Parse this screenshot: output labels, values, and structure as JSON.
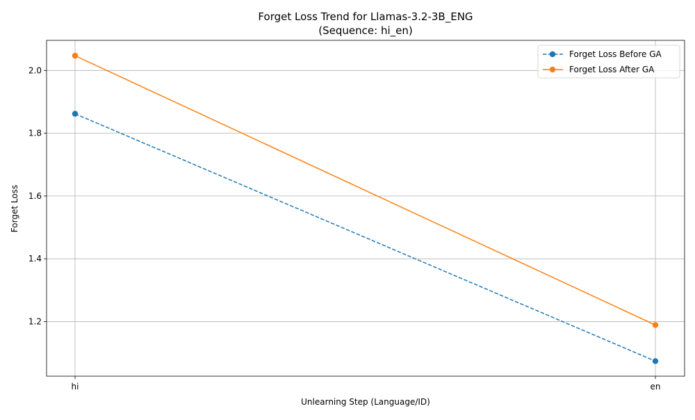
{
  "chart_data": {
    "type": "line",
    "title": "Forget Loss Trend for Llamas-3.2-3B_ENG",
    "subtitle": "(Sequence: hi_en)",
    "xlabel": "Unlearning Step (Language/ID)",
    "ylabel": "Forget Loss",
    "categories": [
      "hi",
      "en"
    ],
    "ylim": [
      1.026,
      2.096
    ],
    "yticks": [
      1.2,
      1.4,
      1.6,
      1.8,
      2.0
    ],
    "ytick_labels": [
      "1.2",
      "1.4",
      "1.6",
      "1.8",
      "2.0"
    ],
    "grid": true,
    "legend_position": "top-right",
    "series": [
      {
        "name": "Forget Loss Before GA",
        "values": [
          1.862,
          1.074
        ],
        "color": "#1f77b4",
        "linestyle": "dashed",
        "marker": "circle"
      },
      {
        "name": "Forget Loss After GA",
        "values": [
          2.047,
          1.189
        ],
        "color": "#ff7f0e",
        "linestyle": "solid",
        "marker": "circle"
      }
    ]
  }
}
